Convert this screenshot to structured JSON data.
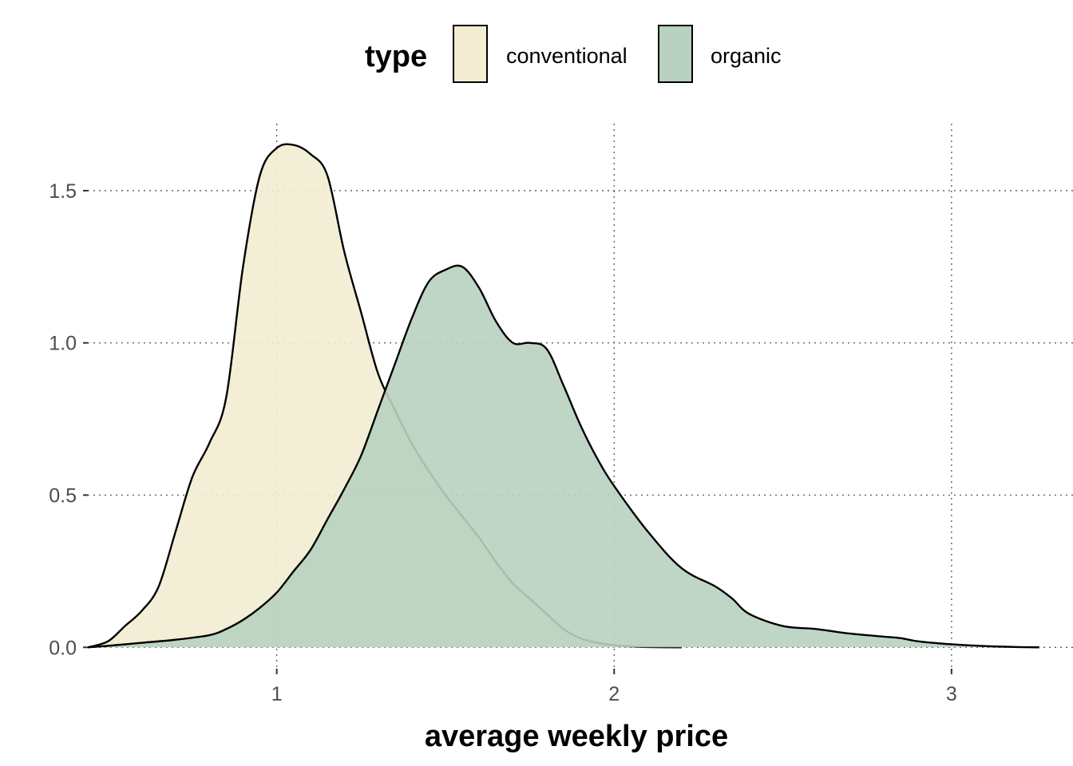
{
  "chart_data": {
    "type": "area",
    "subtype": "density",
    "title": "",
    "xlabel": "average weekly price",
    "ylabel": "",
    "xlim": [
      0.44,
      3.36
    ],
    "ylim": [
      -0.07,
      1.72
    ],
    "x_ticks": [
      1,
      2,
      3
    ],
    "x_tick_labels": [
      "1",
      "2",
      "3"
    ],
    "y_ticks": [
      0.0,
      0.5,
      1.0,
      1.5
    ],
    "y_tick_labels": [
      "0.0",
      "0.5",
      "1.0",
      "1.5"
    ],
    "grid": "dotted major",
    "legend": {
      "title": "type",
      "position": "top",
      "entries": [
        "conventional",
        "organic"
      ]
    },
    "series": [
      {
        "name": "conventional",
        "color": "#f2ecd2",
        "opacity": 0.9,
        "x": [
          0.44,
          0.5,
          0.55,
          0.6,
          0.65,
          0.7,
          0.75,
          0.8,
          0.85,
          0.9,
          0.95,
          1.0,
          1.05,
          1.1,
          1.15,
          1.2,
          1.25,
          1.3,
          1.35,
          1.4,
          1.45,
          1.5,
          1.55,
          1.6,
          1.65,
          1.7,
          1.75,
          1.8,
          1.85,
          1.9,
          1.95,
          2.0,
          2.05,
          2.1,
          2.2
        ],
        "y": [
          0.0,
          0.02,
          0.07,
          0.12,
          0.2,
          0.38,
          0.56,
          0.67,
          0.82,
          1.25,
          1.55,
          1.64,
          1.65,
          1.62,
          1.55,
          1.3,
          1.1,
          0.9,
          0.78,
          0.67,
          0.58,
          0.5,
          0.43,
          0.36,
          0.28,
          0.21,
          0.16,
          0.11,
          0.06,
          0.03,
          0.015,
          0.007,
          0.003,
          0.001,
          0.0
        ]
      },
      {
        "name": "organic",
        "color": "#b8d1c0",
        "opacity": 0.9,
        "x": [
          0.44,
          0.5,
          0.6,
          0.7,
          0.8,
          0.85,
          0.9,
          0.95,
          1.0,
          1.05,
          1.1,
          1.15,
          1.2,
          1.25,
          1.3,
          1.35,
          1.4,
          1.45,
          1.5,
          1.55,
          1.6,
          1.65,
          1.7,
          1.75,
          1.8,
          1.85,
          1.9,
          1.95,
          2.0,
          2.1,
          2.2,
          2.3,
          2.35,
          2.4,
          2.5,
          2.6,
          2.7,
          2.8,
          2.85,
          2.9,
          3.0,
          3.1,
          3.2,
          3.26
        ],
        "y": [
          0.0,
          0.005,
          0.015,
          0.025,
          0.04,
          0.06,
          0.09,
          0.13,
          0.18,
          0.25,
          0.32,
          0.42,
          0.52,
          0.63,
          0.78,
          0.93,
          1.08,
          1.2,
          1.24,
          1.25,
          1.18,
          1.07,
          1.0,
          1.0,
          0.98,
          0.86,
          0.73,
          0.62,
          0.53,
          0.38,
          0.26,
          0.2,
          0.16,
          0.11,
          0.07,
          0.06,
          0.045,
          0.035,
          0.03,
          0.02,
          0.01,
          0.004,
          0.001,
          0.0
        ]
      }
    ]
  }
}
